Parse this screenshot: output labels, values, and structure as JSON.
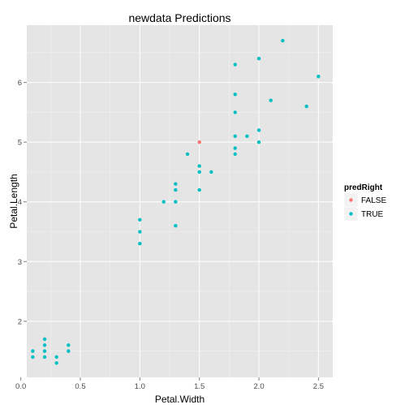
{
  "chart_data": {
    "type": "scatter",
    "title": "newdata Predictions",
    "xlabel": "Petal.Width",
    "ylabel": "Petal.Length",
    "xlim": [
      0.05,
      2.62
    ],
    "ylim": [
      1.06,
      6.96
    ],
    "x_ticks": [
      {
        "value": 0.0,
        "label": "0.0"
      },
      {
        "value": 0.5,
        "label": "0.5"
      },
      {
        "value": 1.0,
        "label": "1.0"
      },
      {
        "value": 1.5,
        "label": "1.5"
      },
      {
        "value": 2.0,
        "label": "2.0"
      },
      {
        "value": 2.5,
        "label": "2.5"
      }
    ],
    "y_ticks": [
      {
        "value": 2,
        "label": "2"
      },
      {
        "value": 3,
        "label": "3"
      },
      {
        "value": 4,
        "label": "4"
      },
      {
        "value": 5,
        "label": "5"
      },
      {
        "value": 6,
        "label": "6"
      }
    ],
    "background_color": "#e5e5e5",
    "grid": true,
    "legend": {
      "title": "predRight",
      "placement": "right",
      "entries": [
        {
          "label": "FALSE",
          "color": "#f8766d"
        },
        {
          "label": "TRUE",
          "color": "#00bfc4"
        }
      ]
    },
    "series": [
      {
        "name": "FALSE",
        "color": "#f8766d",
        "points": [
          {
            "x": 1.5,
            "y": 5.0
          }
        ]
      },
      {
        "name": "TRUE",
        "color": "#00bfc4",
        "points": [
          {
            "x": 0.1,
            "y": 1.5
          },
          {
            "x": 0.1,
            "y": 1.4
          },
          {
            "x": 0.2,
            "y": 1.7
          },
          {
            "x": 0.2,
            "y": 1.6
          },
          {
            "x": 0.2,
            "y": 1.5
          },
          {
            "x": 0.2,
            "y": 1.4
          },
          {
            "x": 0.3,
            "y": 1.4
          },
          {
            "x": 0.3,
            "y": 1.3
          },
          {
            "x": 0.4,
            "y": 1.6
          },
          {
            "x": 0.4,
            "y": 1.5
          },
          {
            "x": 1.0,
            "y": 3.7
          },
          {
            "x": 1.0,
            "y": 3.5
          },
          {
            "x": 1.0,
            "y": 3.3
          },
          {
            "x": 1.2,
            "y": 4.0
          },
          {
            "x": 1.3,
            "y": 4.3
          },
          {
            "x": 1.3,
            "y": 4.2
          },
          {
            "x": 1.3,
            "y": 4.0
          },
          {
            "x": 1.3,
            "y": 3.6
          },
          {
            "x": 1.4,
            "y": 4.8
          },
          {
            "x": 1.5,
            "y": 4.6
          },
          {
            "x": 1.5,
            "y": 4.5
          },
          {
            "x": 1.5,
            "y": 4.2
          },
          {
            "x": 1.6,
            "y": 4.5
          },
          {
            "x": 1.8,
            "y": 6.3
          },
          {
            "x": 1.8,
            "y": 5.8
          },
          {
            "x": 1.8,
            "y": 5.5
          },
          {
            "x": 1.8,
            "y": 5.1
          },
          {
            "x": 1.8,
            "y": 4.9
          },
          {
            "x": 1.8,
            "y": 4.8
          },
          {
            "x": 1.9,
            "y": 5.1
          },
          {
            "x": 2.0,
            "y": 6.4
          },
          {
            "x": 2.0,
            "y": 5.2
          },
          {
            "x": 2.0,
            "y": 5.0
          },
          {
            "x": 2.1,
            "y": 5.7
          },
          {
            "x": 2.2,
            "y": 6.7
          },
          {
            "x": 2.4,
            "y": 5.6
          },
          {
            "x": 2.5,
            "y": 6.1
          }
        ]
      }
    ]
  }
}
